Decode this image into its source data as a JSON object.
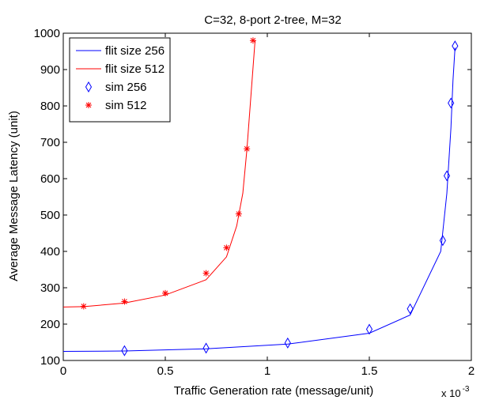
{
  "chart_data": {
    "type": "line",
    "title": "C=32, 8-port 2-tree, M=32",
    "xlabel": "Traffic Generation rate (message/unit)",
    "ylabel": "Average Message Latency (unit)",
    "x_multiplier": "x 10",
    "x_multiplier_exp": "-3",
    "xlim": [
      0,
      2
    ],
    "ylim": [
      100,
      1000
    ],
    "xticks": [
      0,
      0.5,
      1,
      1.5,
      2
    ],
    "xtick_labels": [
      "0",
      "0.5",
      "1",
      "1.5",
      "2"
    ],
    "yticks": [
      100,
      200,
      300,
      400,
      500,
      600,
      700,
      800,
      900,
      1000
    ],
    "ytick_labels": [
      "100",
      "200",
      "300",
      "400",
      "500",
      "600",
      "700",
      "800",
      "900",
      "1000"
    ],
    "grid": false,
    "legend_position": "top-left",
    "series": [
      {
        "name": "flit size 256",
        "kind": "line",
        "color": "#0000ff",
        "x": [
          0,
          0.3,
          0.7,
          1.1,
          1.5,
          1.7,
          1.85,
          1.88,
          1.9,
          1.91,
          1.92
        ],
        "y": [
          125,
          126,
          132,
          145,
          175,
          225,
          400,
          560,
          740,
          870,
          960
        ]
      },
      {
        "name": "flit size 512",
        "kind": "line",
        "color": "#ff0000",
        "x": [
          0,
          0.1,
          0.3,
          0.5,
          0.7,
          0.8,
          0.85,
          0.88,
          0.9,
          0.92,
          0.94
        ],
        "y": [
          247,
          248,
          258,
          280,
          322,
          385,
          470,
          560,
          680,
          830,
          980
        ]
      },
      {
        "name": "sim 256",
        "kind": "scatter",
        "marker": "diamond",
        "color": "#0000ff",
        "x": [
          0.3,
          0.7,
          1.1,
          1.5,
          1.7,
          1.86,
          1.88,
          1.9,
          1.92
        ],
        "y": [
          127,
          134,
          148,
          186,
          242,
          430,
          608,
          808,
          965
        ]
      },
      {
        "name": "sim 512",
        "kind": "scatter",
        "marker": "star",
        "color": "#ff0000",
        "x": [
          0.1,
          0.3,
          0.5,
          0.7,
          0.8,
          0.86,
          0.9,
          0.93
        ],
        "y": [
          249,
          262,
          285,
          340,
          410,
          503,
          682,
          980
        ]
      }
    ]
  }
}
